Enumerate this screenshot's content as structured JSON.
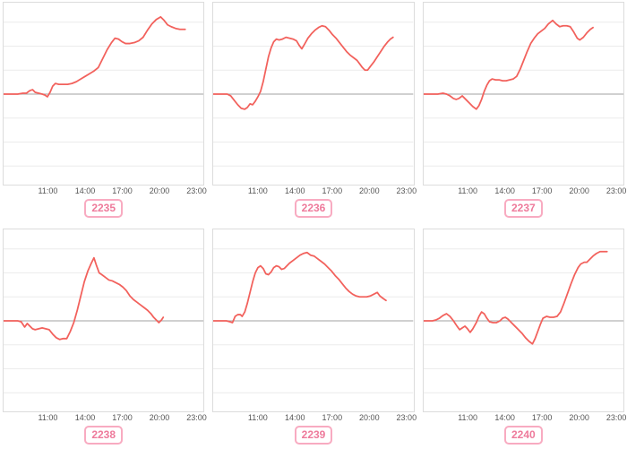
{
  "colors": {
    "line": "#f2615c",
    "grid": "#ececec",
    "zero_line": "#b3b3b3",
    "plot_border": "#dcdcdc",
    "tick_text": "#555555",
    "badge_text": "#ee7a9b",
    "badge_border": "#f8abc1"
  },
  "x_ticks": [
    "11:00",
    "14:00",
    "17:00",
    "20:00",
    "23:00"
  ],
  "chart_data": [
    {
      "type": "line",
      "label": "2235",
      "x_axis_ticks": [
        "11:00",
        "14:00",
        "17:00",
        "20:00",
        "23:00"
      ],
      "y_unit": "relative to baseline (axis unlabeled, px-estimated)",
      "points": [
        [
          0,
          0
        ],
        [
          8,
          0
        ],
        [
          16,
          0
        ],
        [
          22,
          1
        ],
        [
          26,
          1
        ],
        [
          30,
          4
        ],
        [
          33,
          5
        ],
        [
          36,
          2
        ],
        [
          40,
          1
        ],
        [
          44,
          0
        ],
        [
          47,
          -1
        ],
        [
          50,
          -3
        ],
        [
          53,
          2
        ],
        [
          56,
          9
        ],
        [
          59,
          12
        ],
        [
          63,
          11
        ],
        [
          68,
          11
        ],
        [
          73,
          11
        ],
        [
          78,
          12
        ],
        [
          83,
          14
        ],
        [
          88,
          17
        ],
        [
          93,
          20
        ],
        [
          98,
          23
        ],
        [
          103,
          26
        ],
        [
          108,
          30
        ],
        [
          113,
          40
        ],
        [
          118,
          50
        ],
        [
          123,
          58
        ],
        [
          127,
          63
        ],
        [
          131,
          62
        ],
        [
          135,
          59
        ],
        [
          139,
          57
        ],
        [
          144,
          57
        ],
        [
          149,
          58
        ],
        [
          154,
          60
        ],
        [
          159,
          64
        ],
        [
          164,
          72
        ],
        [
          169,
          79
        ],
        [
          174,
          84
        ],
        [
          179,
          87
        ],
        [
          183,
          83
        ],
        [
          187,
          78
        ],
        [
          191,
          76
        ],
        [
          196,
          74
        ],
        [
          201,
          73
        ],
        [
          207,
          73
        ]
      ]
    },
    {
      "type": "line",
      "label": "2236",
      "x_axis_ticks": [
        "11:00",
        "14:00",
        "17:00",
        "20:00",
        "23:00"
      ],
      "y_unit": "relative to baseline (axis unlabeled, px-estimated)",
      "points": [
        [
          0,
          0
        ],
        [
          10,
          0
        ],
        [
          16,
          0
        ],
        [
          20,
          -2
        ],
        [
          24,
          -7
        ],
        [
          28,
          -12
        ],
        [
          32,
          -16
        ],
        [
          36,
          -17
        ],
        [
          39,
          -15
        ],
        [
          42,
          -11
        ],
        [
          45,
          -12
        ],
        [
          48,
          -8
        ],
        [
          51,
          -3
        ],
        [
          54,
          3
        ],
        [
          57,
          14
        ],
        [
          60,
          28
        ],
        [
          63,
          42
        ],
        [
          66,
          52
        ],
        [
          69,
          59
        ],
        [
          72,
          62
        ],
        [
          75,
          61
        ],
        [
          79,
          62
        ],
        [
          83,
          64
        ],
        [
          87,
          63
        ],
        [
          91,
          62
        ],
        [
          95,
          60
        ],
        [
          98,
          55
        ],
        [
          101,
          51
        ],
        [
          104,
          56
        ],
        [
          108,
          63
        ],
        [
          112,
          68
        ],
        [
          116,
          72
        ],
        [
          120,
          75
        ],
        [
          124,
          77
        ],
        [
          128,
          76
        ],
        [
          132,
          72
        ],
        [
          136,
          67
        ],
        [
          140,
          63
        ],
        [
          144,
          58
        ],
        [
          148,
          53
        ],
        [
          152,
          48
        ],
        [
          156,
          44
        ],
        [
          160,
          41
        ],
        [
          164,
          38
        ],
        [
          167,
          34
        ],
        [
          170,
          30
        ],
        [
          173,
          27
        ],
        [
          176,
          27
        ],
        [
          179,
          31
        ],
        [
          183,
          36
        ],
        [
          187,
          42
        ],
        [
          191,
          48
        ],
        [
          195,
          54
        ],
        [
          199,
          59
        ],
        [
          202,
          62
        ],
        [
          205,
          64
        ]
      ]
    },
    {
      "type": "line",
      "label": "2237",
      "x_axis_ticks": [
        "11:00",
        "14:00",
        "17:00",
        "20:00",
        "23:00"
      ],
      "y_unit": "relative to baseline (axis unlabeled, px-estimated)",
      "points": [
        [
          0,
          0
        ],
        [
          10,
          0
        ],
        [
          16,
          0
        ],
        [
          22,
          1
        ],
        [
          26,
          0
        ],
        [
          30,
          -2
        ],
        [
          34,
          -5
        ],
        [
          37,
          -6
        ],
        [
          40,
          -5
        ],
        [
          44,
          -2
        ],
        [
          48,
          -6
        ],
        [
          52,
          -10
        ],
        [
          56,
          -14
        ],
        [
          60,
          -17
        ],
        [
          63,
          -13
        ],
        [
          66,
          -6
        ],
        [
          69,
          3
        ],
        [
          72,
          10
        ],
        [
          75,
          15
        ],
        [
          78,
          17
        ],
        [
          82,
          16
        ],
        [
          86,
          16
        ],
        [
          90,
          15
        ],
        [
          94,
          15
        ],
        [
          98,
          16
        ],
        [
          102,
          17
        ],
        [
          106,
          20
        ],
        [
          110,
          28
        ],
        [
          114,
          38
        ],
        [
          118,
          48
        ],
        [
          122,
          57
        ],
        [
          126,
          63
        ],
        [
          130,
          68
        ],
        [
          134,
          71
        ],
        [
          138,
          74
        ],
        [
          142,
          79
        ],
        [
          147,
          83
        ],
        [
          151,
          79
        ],
        [
          155,
          76
        ],
        [
          159,
          77
        ],
        [
          163,
          77
        ],
        [
          167,
          76
        ],
        [
          171,
          70
        ],
        [
          175,
          63
        ],
        [
          178,
          61
        ],
        [
          182,
          64
        ],
        [
          186,
          69
        ],
        [
          190,
          73
        ],
        [
          193,
          75
        ]
      ]
    },
    {
      "type": "line",
      "label": "2238",
      "x_axis_ticks": [
        "11:00",
        "14:00",
        "17:00",
        "20:00",
        "23:00"
      ],
      "y_unit": "relative to baseline (axis unlabeled, px-estimated)",
      "points": [
        [
          0,
          0
        ],
        [
          10,
          0
        ],
        [
          16,
          0
        ],
        [
          20,
          -1
        ],
        [
          24,
          -7
        ],
        [
          27,
          -3
        ],
        [
          30,
          -6
        ],
        [
          33,
          -9
        ],
        [
          36,
          -10
        ],
        [
          40,
          -9
        ],
        [
          44,
          -8
        ],
        [
          48,
          -9
        ],
        [
          52,
          -10
        ],
        [
          56,
          -15
        ],
        [
          60,
          -19
        ],
        [
          64,
          -21
        ],
        [
          68,
          -20
        ],
        [
          72,
          -20
        ],
        [
          76,
          -12
        ],
        [
          80,
          -2
        ],
        [
          84,
          12
        ],
        [
          88,
          28
        ],
        [
          92,
          44
        ],
        [
          96,
          56
        ],
        [
          100,
          65
        ],
        [
          103,
          71
        ],
        [
          106,
          62
        ],
        [
          109,
          54
        ],
        [
          112,
          52
        ],
        [
          116,
          49
        ],
        [
          120,
          46
        ],
        [
          124,
          45
        ],
        [
          128,
          43
        ],
        [
          132,
          41
        ],
        [
          136,
          38
        ],
        [
          140,
          34
        ],
        [
          144,
          28
        ],
        [
          148,
          24
        ],
        [
          152,
          21
        ],
        [
          156,
          18
        ],
        [
          160,
          15
        ],
        [
          164,
          12
        ],
        [
          168,
          8
        ],
        [
          171,
          4
        ],
        [
          174,
          1
        ],
        [
          177,
          -2
        ],
        [
          180,
          1
        ],
        [
          182,
          4
        ]
      ]
    },
    {
      "type": "line",
      "label": "2239",
      "x_axis_ticks": [
        "11:00",
        "14:00",
        "17:00",
        "20:00",
        "23:00"
      ],
      "y_unit": "relative to baseline (axis unlabeled, px-estimated)",
      "points": [
        [
          0,
          0
        ],
        [
          10,
          0
        ],
        [
          15,
          0
        ],
        [
          19,
          -1
        ],
        [
          22,
          -2
        ],
        [
          25,
          5
        ],
        [
          28,
          7
        ],
        [
          31,
          7
        ],
        [
          33,
          5
        ],
        [
          36,
          10
        ],
        [
          39,
          20
        ],
        [
          42,
          32
        ],
        [
          45,
          44
        ],
        [
          48,
          54
        ],
        [
          51,
          60
        ],
        [
          54,
          62
        ],
        [
          57,
          59
        ],
        [
          60,
          53
        ],
        [
          63,
          52
        ],
        [
          66,
          55
        ],
        [
          69,
          60
        ],
        [
          72,
          62
        ],
        [
          75,
          61
        ],
        [
          78,
          58
        ],
        [
          81,
          59
        ],
        [
          84,
          62
        ],
        [
          87,
          65
        ],
        [
          91,
          68
        ],
        [
          95,
          71
        ],
        [
          99,
          74
        ],
        [
          103,
          76
        ],
        [
          107,
          77
        ],
        [
          111,
          74
        ],
        [
          115,
          73
        ],
        [
          119,
          70
        ],
        [
          123,
          67
        ],
        [
          127,
          64
        ],
        [
          131,
          60
        ],
        [
          135,
          56
        ],
        [
          139,
          51
        ],
        [
          143,
          47
        ],
        [
          147,
          42
        ],
        [
          151,
          37
        ],
        [
          155,
          33
        ],
        [
          159,
          30
        ],
        [
          163,
          28
        ],
        [
          167,
          27
        ],
        [
          171,
          27
        ],
        [
          175,
          27
        ],
        [
          179,
          28
        ],
        [
          183,
          30
        ],
        [
          187,
          32
        ],
        [
          190,
          28
        ],
        [
          194,
          25
        ],
        [
          197,
          23
        ]
      ]
    },
    {
      "type": "line",
      "label": "2240",
      "x_axis_ticks": [
        "11:00",
        "14:00",
        "17:00",
        "20:00",
        "23:00"
      ],
      "y_unit": "relative to baseline (axis unlabeled, px-estimated)",
      "points": [
        [
          0,
          0
        ],
        [
          10,
          0
        ],
        [
          14,
          1
        ],
        [
          18,
          3
        ],
        [
          22,
          6
        ],
        [
          26,
          8
        ],
        [
          30,
          5
        ],
        [
          34,
          0
        ],
        [
          38,
          -6
        ],
        [
          41,
          -10
        ],
        [
          44,
          -8
        ],
        [
          47,
          -6
        ],
        [
          50,
          -9
        ],
        [
          53,
          -13
        ],
        [
          56,
          -9
        ],
        [
          60,
          -2
        ],
        [
          63,
          5
        ],
        [
          66,
          10
        ],
        [
          69,
          8
        ],
        [
          72,
          3
        ],
        [
          75,
          -1
        ],
        [
          79,
          -2
        ],
        [
          83,
          -2
        ],
        [
          87,
          0
        ],
        [
          90,
          3
        ],
        [
          93,
          4
        ],
        [
          96,
          2
        ],
        [
          100,
          -2
        ],
        [
          104,
          -6
        ],
        [
          108,
          -10
        ],
        [
          112,
          -14
        ],
        [
          116,
          -19
        ],
        [
          120,
          -23
        ],
        [
          124,
          -26
        ],
        [
          127,
          -20
        ],
        [
          130,
          -12
        ],
        [
          133,
          -4
        ],
        [
          136,
          3
        ],
        [
          140,
          5
        ],
        [
          144,
          4
        ],
        [
          148,
          4
        ],
        [
          152,
          5
        ],
        [
          156,
          10
        ],
        [
          160,
          20
        ],
        [
          164,
          31
        ],
        [
          168,
          42
        ],
        [
          172,
          52
        ],
        [
          176,
          60
        ],
        [
          179,
          64
        ],
        [
          183,
          66
        ],
        [
          186,
          66
        ],
        [
          189,
          69
        ],
        [
          193,
          73
        ],
        [
          197,
          76
        ],
        [
          201,
          78
        ],
        [
          205,
          78
        ],
        [
          209,
          78
        ]
      ]
    }
  ]
}
